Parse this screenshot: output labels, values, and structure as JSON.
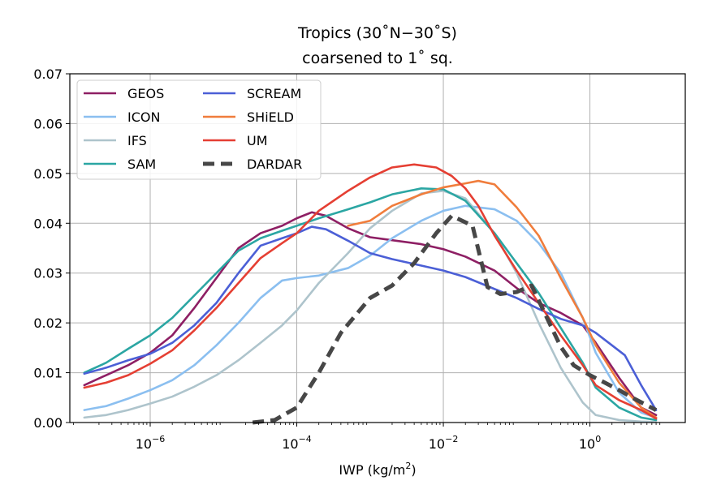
{
  "chart_data": {
    "type": "line",
    "title": "Tropics (30˚N−30˚S)",
    "subtitle": "coarsened to 1˚ sq.",
    "xlabel_main": "IWP (kg/m",
    "xlabel_sup": "2",
    "xlabel_end": ")",
    "ylabel": "",
    "xscale": "log",
    "xlim": [
      8e-08,
      20
    ],
    "ylim": [
      0,
      0.07
    ],
    "grid": true,
    "legend_position": "top-left",
    "legend_columns": 2,
    "x_tick_labels": [
      {
        "value": 1e-06,
        "base": "10",
        "exp": "−6"
      },
      {
        "value": 0.0001,
        "base": "10",
        "exp": "−4"
      },
      {
        "value": 0.01,
        "base": "10",
        "exp": "−2"
      },
      {
        "value": 1,
        "base": "10",
        "exp": "0"
      }
    ],
    "y_ticks": [
      0,
      0.01,
      0.02,
      0.03,
      0.04,
      0.05,
      0.06,
      0.07
    ],
    "y_tick_labels": [
      "0.00",
      "0.01",
      "0.02",
      "0.03",
      "0.04",
      "0.05",
      "0.06",
      "0.07"
    ],
    "series": [
      {
        "name": "GEOS",
        "color": "#8e1f64",
        "dashed": false,
        "x": [
          1.26e-07,
          2.5e-07,
          5e-07,
          1e-06,
          2e-06,
          4e-06,
          8e-06,
          1.6e-05,
          3.2e-05,
          6.3e-05,
          0.0001,
          0.00016,
          0.00025,
          0.0005,
          0.001,
          0.002,
          0.005,
          0.01,
          0.02,
          0.05,
          0.1,
          0.2,
          0.4,
          0.8,
          1.2,
          2.5,
          5,
          8
        ],
        "y": [
          0.0075,
          0.0095,
          0.0115,
          0.014,
          0.0175,
          0.023,
          0.029,
          0.035,
          0.038,
          0.0395,
          0.041,
          0.0422,
          0.0415,
          0.039,
          0.0372,
          0.0366,
          0.0358,
          0.0348,
          0.0333,
          0.0305,
          0.027,
          0.024,
          0.022,
          0.0195,
          0.016,
          0.009,
          0.003,
          0.0015
        ]
      },
      {
        "name": "ICON",
        "color": "#8bbff0",
        "dashed": false,
        "x": [
          1.26e-07,
          2.5e-07,
          5e-07,
          1e-06,
          2e-06,
          4e-06,
          8e-06,
          1.6e-05,
          3.2e-05,
          6.3e-05,
          0.0001,
          0.0002,
          0.0005,
          0.001,
          0.002,
          0.005,
          0.01,
          0.02,
          0.05,
          0.1,
          0.2,
          0.4,
          0.8,
          1.2,
          2.5,
          5,
          8
        ],
        "y": [
          0.0025,
          0.0033,
          0.0048,
          0.0065,
          0.0085,
          0.0115,
          0.0155,
          0.02,
          0.025,
          0.0285,
          0.029,
          0.0295,
          0.031,
          0.0335,
          0.037,
          0.0405,
          0.0425,
          0.0435,
          0.0428,
          0.0405,
          0.036,
          0.03,
          0.021,
          0.014,
          0.006,
          0.002,
          0.001
        ]
      },
      {
        "name": "IFS",
        "color": "#aec4cc",
        "dashed": false,
        "x": [
          1.26e-07,
          2.5e-07,
          5e-07,
          1e-06,
          2e-06,
          4e-06,
          8e-06,
          1.6e-05,
          3.2e-05,
          6.3e-05,
          0.0001,
          0.0002,
          0.0005,
          0.001,
          0.002,
          0.005,
          0.01,
          0.02,
          0.05,
          0.1,
          0.2,
          0.4,
          0.8,
          1.2,
          2.5,
          5,
          8
        ],
        "y": [
          0.001,
          0.0015,
          0.0025,
          0.0038,
          0.0052,
          0.0072,
          0.0095,
          0.0125,
          0.016,
          0.0195,
          0.0225,
          0.028,
          0.034,
          0.039,
          0.0425,
          0.046,
          0.0465,
          0.045,
          0.038,
          0.03,
          0.02,
          0.011,
          0.004,
          0.0015,
          0.0005,
          0.0002,
          0.0001
        ]
      },
      {
        "name": "SAM",
        "color": "#2ba6a3",
        "dashed": false,
        "x": [
          1.26e-07,
          2.5e-07,
          5e-07,
          1e-06,
          2e-06,
          4e-06,
          8e-06,
          1.6e-05,
          3.2e-05,
          6.3e-05,
          0.0001,
          0.0002,
          0.0005,
          0.001,
          0.002,
          0.005,
          0.01,
          0.02,
          0.05,
          0.1,
          0.2,
          0.4,
          0.8,
          1.2,
          2.5,
          5,
          8
        ],
        "y": [
          0.01,
          0.012,
          0.0148,
          0.0175,
          0.021,
          0.0255,
          0.03,
          0.0345,
          0.037,
          0.0385,
          0.0395,
          0.041,
          0.0428,
          0.0442,
          0.0458,
          0.047,
          0.0468,
          0.0445,
          0.038,
          0.032,
          0.026,
          0.019,
          0.012,
          0.007,
          0.003,
          0.001,
          0.0005
        ]
      },
      {
        "name": "SCREAM",
        "color": "#4b5fd6",
        "dashed": false,
        "x": [
          1.26e-07,
          2.5e-07,
          5e-07,
          1e-06,
          2e-06,
          4e-06,
          8e-06,
          1.6e-05,
          3.2e-05,
          6.3e-05,
          0.0001,
          0.00016,
          0.00025,
          0.0005,
          0.001,
          0.002,
          0.005,
          0.01,
          0.02,
          0.05,
          0.1,
          0.2,
          0.4,
          0.8,
          1.2,
          2,
          3,
          5,
          8
        ],
        "y": [
          0.0098,
          0.011,
          0.0125,
          0.0138,
          0.016,
          0.0195,
          0.024,
          0.03,
          0.0355,
          0.037,
          0.038,
          0.0393,
          0.0388,
          0.0365,
          0.034,
          0.0328,
          0.0315,
          0.0305,
          0.0292,
          0.0268,
          0.025,
          0.0228,
          0.0208,
          0.0195,
          0.018,
          0.0155,
          0.0135,
          0.0075,
          0.0025
        ]
      },
      {
        "name": "SHiELD",
        "color": "#f07d3c",
        "dashed": false,
        "x": [
          0.0005,
          0.001,
          0.002,
          0.005,
          0.01,
          0.02,
          0.03,
          0.05,
          0.1,
          0.2,
          0.4,
          0.8,
          1.2,
          2.5,
          5,
          8
        ],
        "y": [
          0.0395,
          0.0405,
          0.0435,
          0.0458,
          0.0472,
          0.048,
          0.0485,
          0.0478,
          0.0432,
          0.0375,
          0.029,
          0.021,
          0.0155,
          0.008,
          0.003,
          0.001
        ]
      },
      {
        "name": "UM",
        "color": "#e53f33",
        "dashed": false,
        "x": [
          1.26e-07,
          2.5e-07,
          5e-07,
          1e-06,
          2e-06,
          4e-06,
          8e-06,
          1.6e-05,
          3.2e-05,
          6.3e-05,
          0.0001,
          0.0002,
          0.0005,
          0.001,
          0.002,
          0.004,
          0.008,
          0.013,
          0.02,
          0.03,
          0.05,
          0.1,
          0.2,
          0.4,
          0.8,
          1.2,
          2.5,
          5,
          8
        ],
        "y": [
          0.007,
          0.008,
          0.0095,
          0.0118,
          0.0145,
          0.0185,
          0.023,
          0.028,
          0.033,
          0.036,
          0.038,
          0.0425,
          0.0465,
          0.0492,
          0.0512,
          0.0518,
          0.0512,
          0.0495,
          0.047,
          0.0435,
          0.0375,
          0.0305,
          0.024,
          0.0175,
          0.0115,
          0.0075,
          0.0045,
          0.0025,
          0.0008
        ]
      },
      {
        "name": "DARDAR",
        "color": "#474747",
        "dashed": true,
        "x": [
          2.5e-05,
          5e-05,
          0.0001,
          0.0002,
          0.0004,
          0.001,
          0.002,
          0.004,
          0.008,
          0.013,
          0.025,
          0.04,
          0.06,
          0.1,
          0.16,
          0.25,
          0.4,
          0.6,
          1,
          1.6,
          2.5,
          4,
          8
        ],
        "y": [
          0.0,
          0.0005,
          0.003,
          0.01,
          0.018,
          0.025,
          0.0275,
          0.032,
          0.038,
          0.0415,
          0.0395,
          0.0272,
          0.0258,
          0.0262,
          0.0275,
          0.0215,
          0.0152,
          0.0115,
          0.0095,
          0.008,
          0.0065,
          0.0048,
          0.0025
        ]
      }
    ]
  }
}
